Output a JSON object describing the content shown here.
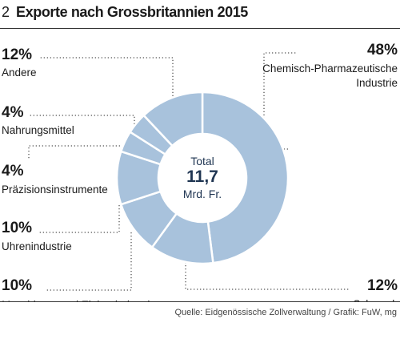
{
  "figure": {
    "number": "2",
    "title": "Exporte nach Grossbritannien 2015"
  },
  "center": {
    "line1": "Total",
    "line2": "11,7",
    "line3": "Mrd. Fr."
  },
  "source": "Quelle: Eidgenössische Zollverwaltung / Grafik: FuW, mg",
  "colors": {
    "slice_fill": "#a8c2dc",
    "slice_stroke": "#ffffff",
    "leader": "#555555",
    "text": "#1a1a1a",
    "total_accent": "#1f3552"
  },
  "chart_data": {
    "type": "pie",
    "variant": "donut",
    "title": "Exporte nach Grossbritannien 2015",
    "total": "11,7 Mrd. Fr.",
    "slices": [
      {
        "pct_label": "48%",
        "label": "Chemisch-Pharmazeutische Industrie",
        "value": 48
      },
      {
        "pct_label": "12%",
        "label": "Schmuck",
        "value": 12
      },
      {
        "pct_label": "10%",
        "label": "Maschinen- und Elektroindustrie",
        "value": 10
      },
      {
        "pct_label": "10%",
        "label": "Uhrenindustrie",
        "value": 10
      },
      {
        "pct_label": "4%",
        "label": "Präzisionsinstrumente",
        "value": 4
      },
      {
        "pct_label": "4%",
        "label": "Nahrungsmittel",
        "value": 4
      },
      {
        "pct_label": "12%",
        "label": "Andere",
        "value": 12
      }
    ]
  }
}
